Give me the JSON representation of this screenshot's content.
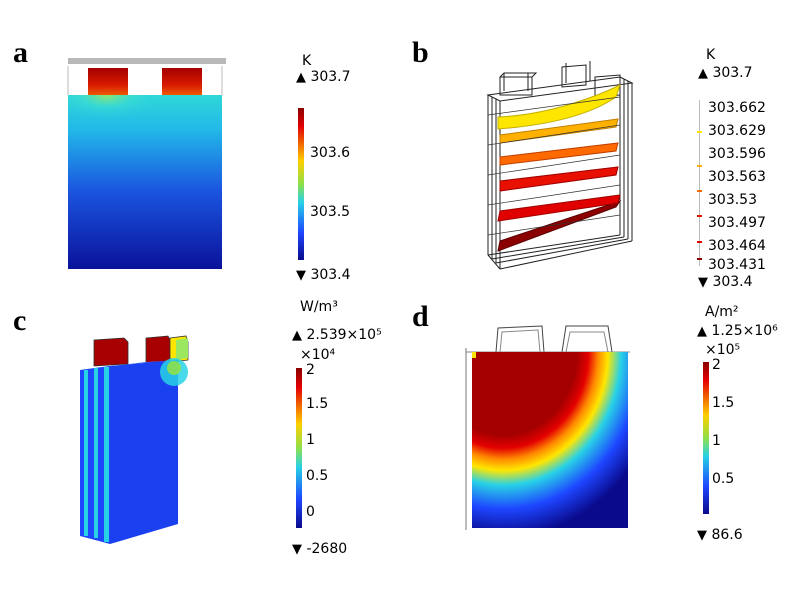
{
  "panels": {
    "a": {
      "label": "a",
      "unit": "K",
      "max": "303.7",
      "min": "303.4",
      "ticks": [
        "303.6",
        "303.5"
      ]
    },
    "b": {
      "label": "b",
      "unit": "K",
      "max": "303.7",
      "min": "303.4",
      "levels": [
        "303.662",
        "303.629",
        "303.596",
        "303.563",
        "303.53",
        "303.497",
        "303.464",
        "303.431"
      ]
    },
    "c": {
      "label": "c",
      "unit": "W/m³",
      "max": "2.539×10⁵",
      "scale": "×10⁴",
      "min": "-2680",
      "ticks": [
        "2",
        "1.5",
        "1",
        "0.5",
        "0"
      ]
    },
    "d": {
      "label": "d",
      "unit": "A/m²",
      "max": "1.25×10⁶",
      "scale": "×10⁵",
      "min": "86.6",
      "ticks": [
        "2",
        "1.5",
        "1",
        "0.5"
      ]
    }
  },
  "markers": {
    "up": "▲",
    "down": "▼"
  },
  "colors": {
    "jet_dark_red": "#8b0000",
    "jet_red": "#e30000",
    "jet_yellow": "#ffe600",
    "jet_cyan": "#28d2e6",
    "jet_blue": "#1e46ff",
    "jet_dark_blue": "#0a0a8c"
  }
}
